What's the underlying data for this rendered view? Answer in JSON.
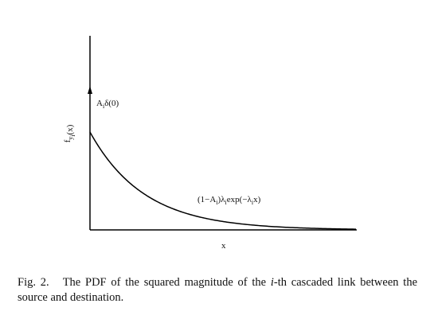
{
  "figure": {
    "y_label": [
      {
        "text": "f"
      },
      {
        "sub": "y"
      },
      {
        "sub": "i"
      },
      {
        "text": "(x)"
      }
    ],
    "impulse_label": [
      {
        "text": "A"
      },
      {
        "sub": "i"
      },
      {
        "text": "δ(0)"
      }
    ],
    "curve_label": [
      {
        "text": "(1−A"
      },
      {
        "sub": "i"
      },
      {
        "text": ")λ"
      },
      {
        "sub": "i"
      },
      {
        "text": "exp(−λ"
      },
      {
        "sub": "i"
      },
      {
        "text": "x)"
      }
    ],
    "x_label": "x"
  },
  "caption": {
    "label": "Fig. 2.",
    "before": "The PDF of the squared magnitude of the ",
    "italic": "i",
    "after": "-th cascaded link between the source and destination."
  }
}
